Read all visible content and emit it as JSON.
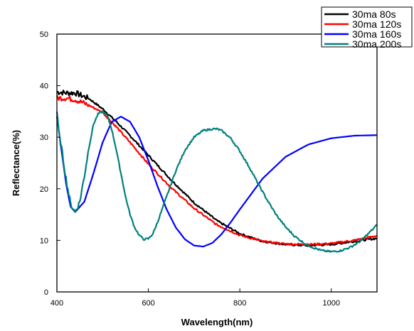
{
  "chart_data": {
    "type": "line",
    "title": "",
    "xlabel": "Wavelength(nm)",
    "ylabel": "Reflectance(%)",
    "xlim": [
      400,
      1100
    ],
    "ylim": [
      0,
      50
    ],
    "xticks": [
      400,
      600,
      800,
      1000
    ],
    "yticks": [
      0,
      10,
      20,
      30,
      40,
      50
    ],
    "grid": false,
    "legend_position": "top-right",
    "series": [
      {
        "name": "30ma 80s",
        "color": "#000000",
        "noisy": true,
        "x": [
          400,
          420,
          440,
          470,
          500,
          530,
          560,
          600,
          650,
          700,
          750,
          800,
          850,
          900,
          950,
          1000,
          1050,
          1100
        ],
        "y": [
          38.8,
          38.6,
          38.6,
          37.5,
          35.5,
          33.0,
          30.3,
          26.5,
          21.7,
          17.3,
          13.8,
          11.3,
          9.8,
          9.2,
          9.0,
          9.2,
          9.8,
          10.4
        ]
      },
      {
        "name": "30ma 120s",
        "color": "#ff0000",
        "noisy": true,
        "x": [
          400,
          420,
          440,
          470,
          500,
          530,
          560,
          600,
          650,
          700,
          750,
          800,
          850,
          900,
          950,
          1000,
          1050,
          1100
        ],
        "y": [
          37.6,
          37.6,
          37.3,
          36.2,
          34.8,
          32.0,
          29.0,
          24.8,
          20.2,
          16.2,
          13.0,
          11.0,
          9.8,
          9.3,
          9.2,
          9.4,
          10.0,
          10.9
        ]
      },
      {
        "name": "30ma 160s",
        "color": "#0000ff",
        "noisy": false,
        "x": [
          400,
          410,
          420,
          430,
          440,
          460,
          480,
          500,
          520,
          540,
          560,
          580,
          600,
          620,
          640,
          660,
          680,
          700,
          720,
          740,
          760,
          780,
          800,
          850,
          900,
          950,
          1000,
          1050,
          1100
        ],
        "y": [
          34.0,
          27.5,
          21.0,
          16.5,
          15.5,
          17.5,
          23.0,
          29.0,
          33.0,
          34.0,
          33.0,
          30.0,
          25.5,
          20.5,
          16.0,
          12.5,
          10.2,
          9.0,
          8.8,
          9.5,
          11.2,
          13.5,
          16.0,
          22.0,
          26.2,
          28.6,
          29.8,
          30.3,
          30.4
        ]
      },
      {
        "name": "30ma 200s",
        "color": "#008080",
        "noisy": true,
        "x": [
          400,
          405,
          410,
          420,
          430,
          440,
          450,
          460,
          470,
          480,
          490,
          500,
          510,
          520,
          530,
          540,
          550,
          560,
          570,
          580,
          590,
          600,
          610,
          620,
          640,
          660,
          680,
          700,
          720,
          740,
          750,
          760,
          780,
          800,
          820,
          840,
          860,
          880,
          900,
          920,
          940,
          960,
          980,
          1000,
          1020,
          1040,
          1060,
          1080,
          1100
        ],
        "y": [
          35.0,
          30.0,
          28.0,
          22.0,
          17.0,
          15.5,
          17.5,
          22.5,
          28.0,
          32.5,
          34.5,
          35.0,
          34.2,
          31.5,
          27.5,
          23.0,
          18.5,
          15.0,
          12.5,
          11.0,
          10.2,
          10.3,
          11.3,
          13.5,
          18.5,
          23.5,
          27.5,
          30.0,
          31.3,
          31.6,
          31.6,
          31.3,
          29.8,
          27.3,
          24.3,
          21.0,
          17.8,
          14.9,
          12.6,
          10.8,
          9.5,
          8.6,
          8.0,
          7.8,
          8.0,
          8.6,
          9.6,
          11.2,
          13.0
        ]
      }
    ]
  }
}
